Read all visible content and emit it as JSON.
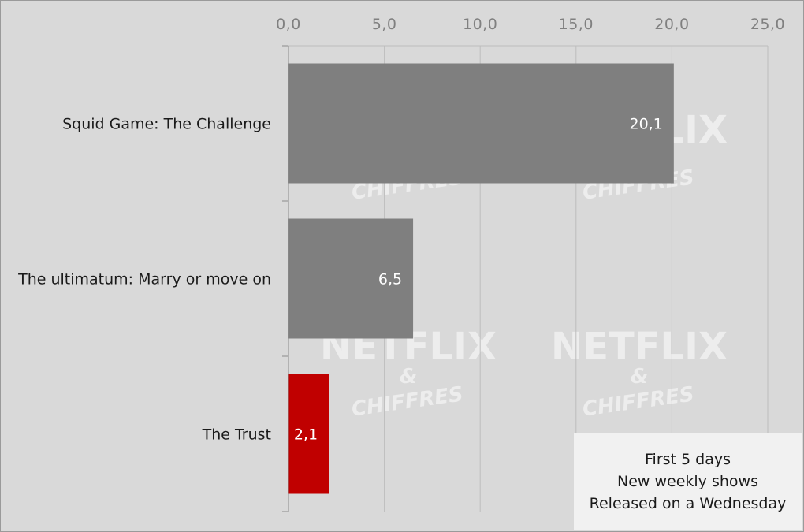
{
  "chart_data": {
    "type": "bar",
    "orientation": "horizontal",
    "categories": [
      "Squid Game: The Challenge",
      "The ultimatum: Marry or move on",
      "The Trust"
    ],
    "values": [
      20.1,
      6.5,
      2.1
    ],
    "value_labels": [
      "20,1",
      "6,5",
      "2,1"
    ],
    "bar_colors": [
      "#7f7f7f",
      "#7f7f7f",
      "#c00000"
    ],
    "xlim": [
      0,
      25
    ],
    "ticks": [
      0,
      5,
      10,
      15,
      20,
      25
    ],
    "tick_labels": [
      "0,0",
      "5,0",
      "10,0",
      "15,0",
      "20,0",
      "25,0"
    ],
    "axis_position": "top",
    "grid": true,
    "title": "",
    "xlabel": "",
    "ylabel": ""
  },
  "note": {
    "lines": [
      "First 5 days",
      "New weekly shows",
      "Released on a Wednesday"
    ]
  },
  "watermark": {
    "line1": "NETFLIX",
    "line2": "&",
    "line3": "CHIFFRES"
  },
  "colors": {
    "background": "#d9d9d9",
    "grid": "#bdbdbd",
    "axis": "#8c8c8c",
    "bar_default": "#7f7f7f",
    "bar_highlight": "#c00000"
  }
}
